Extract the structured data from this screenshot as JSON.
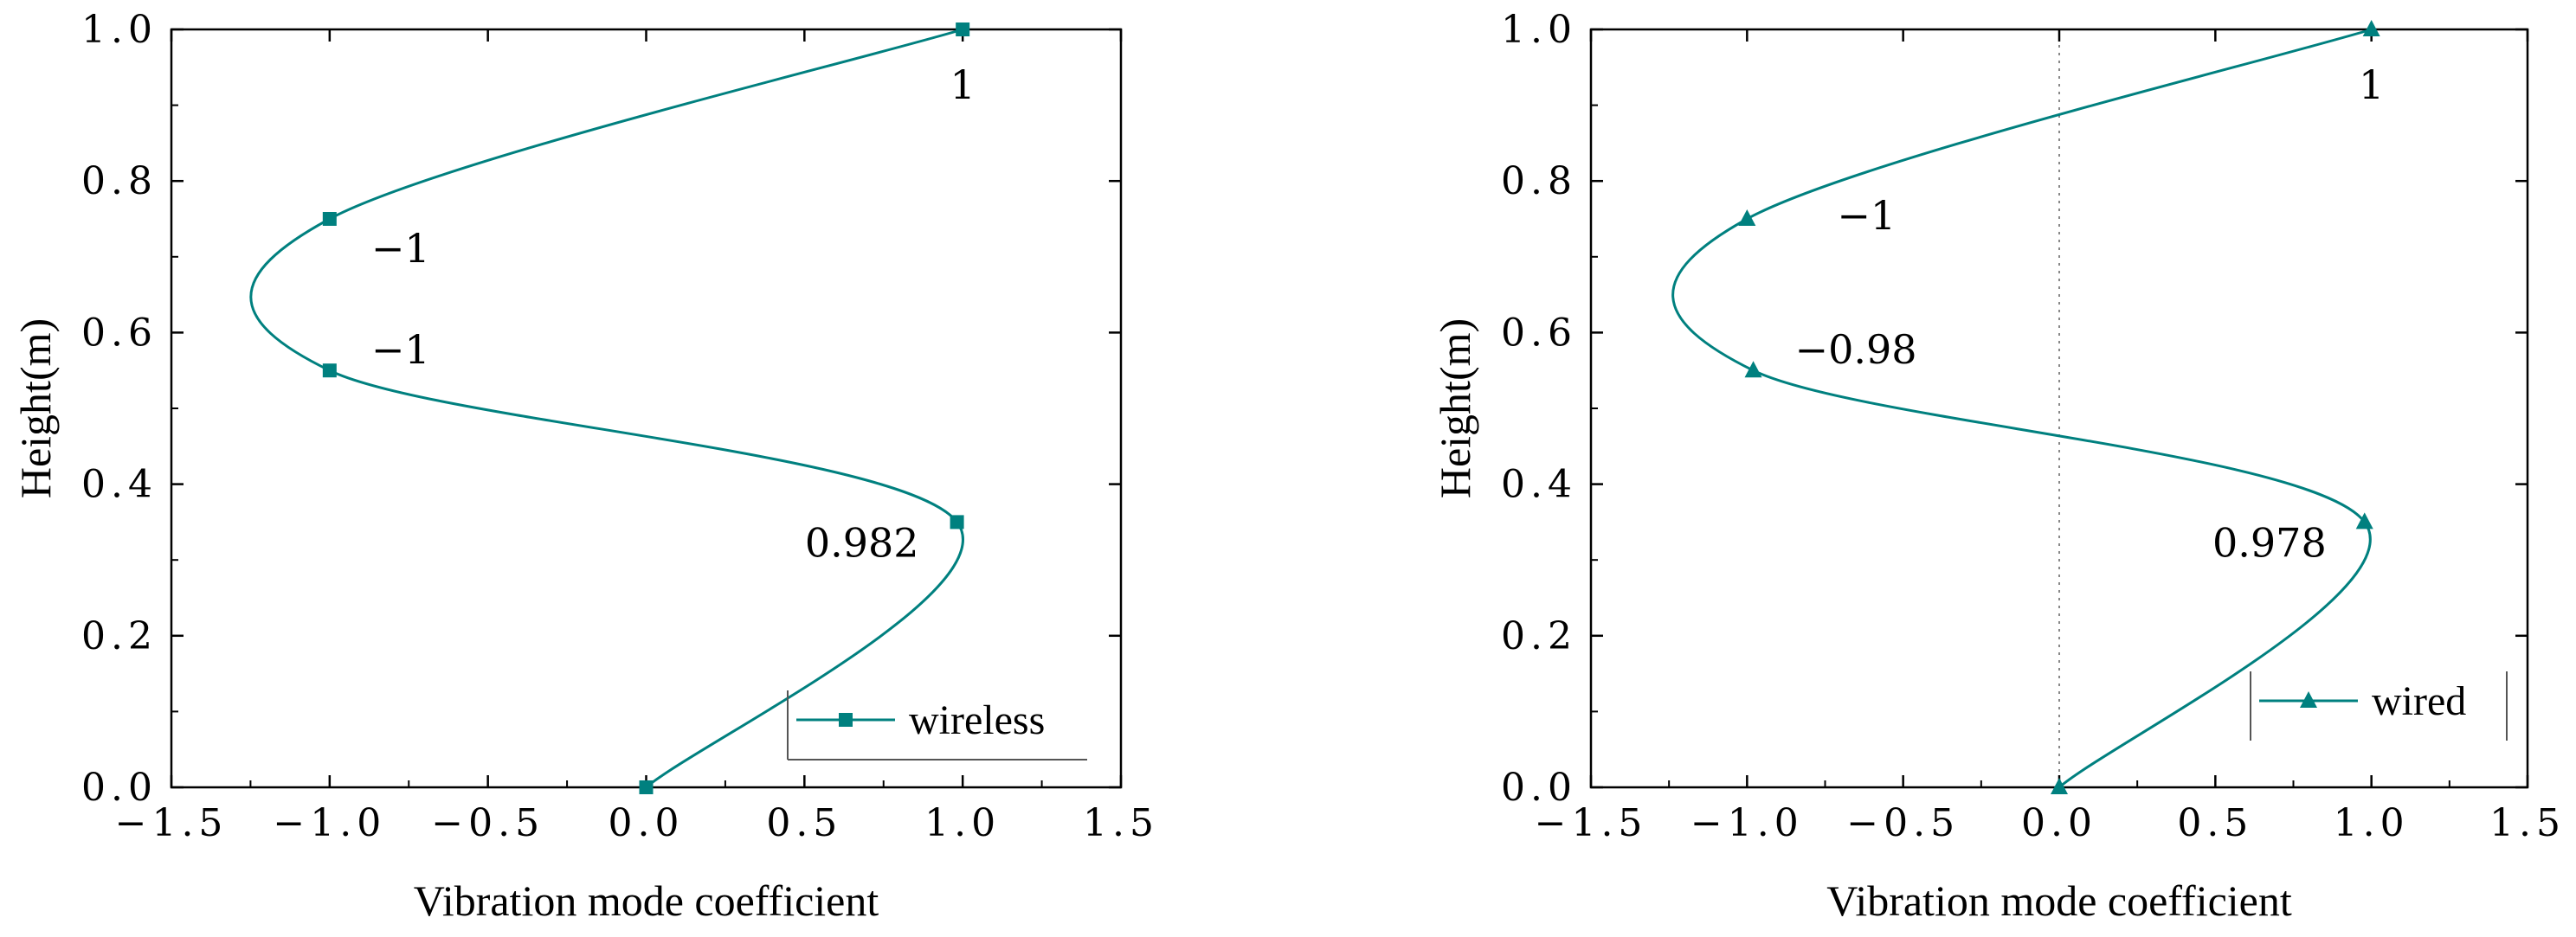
{
  "colors": {
    "series": "#00807f",
    "axis": "#000000",
    "zero_line": "#888888"
  },
  "chart_data": [
    {
      "type": "line",
      "title": "",
      "xlabel": "Vibration mode coefficient",
      "ylabel": "Height(m)",
      "xlim": [
        -1.5,
        1.5
      ],
      "ylim": [
        0.0,
        1.0
      ],
      "xticks": [
        -1.5,
        -1.0,
        -0.5,
        0.0,
        0.5,
        1.0,
        1.5
      ],
      "yticks": [
        0.0,
        0.2,
        0.4,
        0.6,
        0.8,
        1.0
      ],
      "xtick_labels": [
        "−1.5",
        "−1.0",
        "−0.5",
        "0.0",
        "0.5",
        "1.0",
        "1.5"
      ],
      "ytick_labels": [
        "0.0",
        "0.2",
        "0.4",
        "0.6",
        "0.8",
        "1.0"
      ],
      "zero_line": false,
      "legend": {
        "label": "wireless",
        "position": "bottom-right",
        "marker": "square"
      },
      "series": [
        {
          "name": "wireless",
          "marker": "square",
          "points": [
            {
              "x": 0.0,
              "y": 0.0
            },
            {
              "x": 0.982,
              "y": 0.35
            },
            {
              "x": -1.0,
              "y": 0.55
            },
            {
              "x": -1.0,
              "y": 0.75
            },
            {
              "x": 1.0,
              "y": 1.0
            }
          ]
        }
      ],
      "annotations": [
        {
          "text": "1",
          "x": 1.0,
          "y": 1.0,
          "anchor": "below"
        },
        {
          "text": "−1",
          "x": -1.0,
          "y": 0.75,
          "anchor": "below-right"
        },
        {
          "text": "−1",
          "x": -1.0,
          "y": 0.55,
          "anchor": "above-right"
        },
        {
          "text": "0.982",
          "x": 0.982,
          "y": 0.35,
          "anchor": "below-left"
        }
      ]
    },
    {
      "type": "line",
      "title": "",
      "xlabel": "Vibration mode coefficient",
      "ylabel": "Height(m)",
      "xlim": [
        -1.5,
        1.5
      ],
      "ylim": [
        0.0,
        1.0
      ],
      "xticks": [
        -1.5,
        -1.0,
        -0.5,
        0.0,
        0.5,
        1.0,
        1.5
      ],
      "yticks": [
        0.0,
        0.2,
        0.4,
        0.6,
        0.8,
        1.0
      ],
      "xtick_labels": [
        "−1.5",
        "−1.0",
        "−0.5",
        "0.0",
        "0.5",
        "1.0",
        "1.5"
      ],
      "ytick_labels": [
        "0.0",
        "0.2",
        "0.4",
        "0.6",
        "0.8",
        "1.0"
      ],
      "zero_line": true,
      "legend": {
        "label": "wired",
        "position": "bottom-right",
        "marker": "triangle"
      },
      "series": [
        {
          "name": "wired",
          "marker": "triangle",
          "points": [
            {
              "x": 0.0,
              "y": 0.0
            },
            {
              "x": 0.978,
              "y": 0.35
            },
            {
              "x": -0.98,
              "y": 0.55
            },
            {
              "x": -1.0,
              "y": 0.75
            },
            {
              "x": 1.0,
              "y": 1.0
            }
          ]
        }
      ],
      "annotations": [
        {
          "text": "1",
          "x": 1.0,
          "y": 1.0,
          "anchor": "below"
        },
        {
          "text": "−1",
          "x": -1.0,
          "y": 0.75,
          "anchor": "right"
        },
        {
          "text": "−0.98",
          "x": -0.98,
          "y": 0.55,
          "anchor": "above-right"
        },
        {
          "text": "0.978",
          "x": 0.978,
          "y": 0.35,
          "anchor": "below-left"
        }
      ]
    }
  ]
}
